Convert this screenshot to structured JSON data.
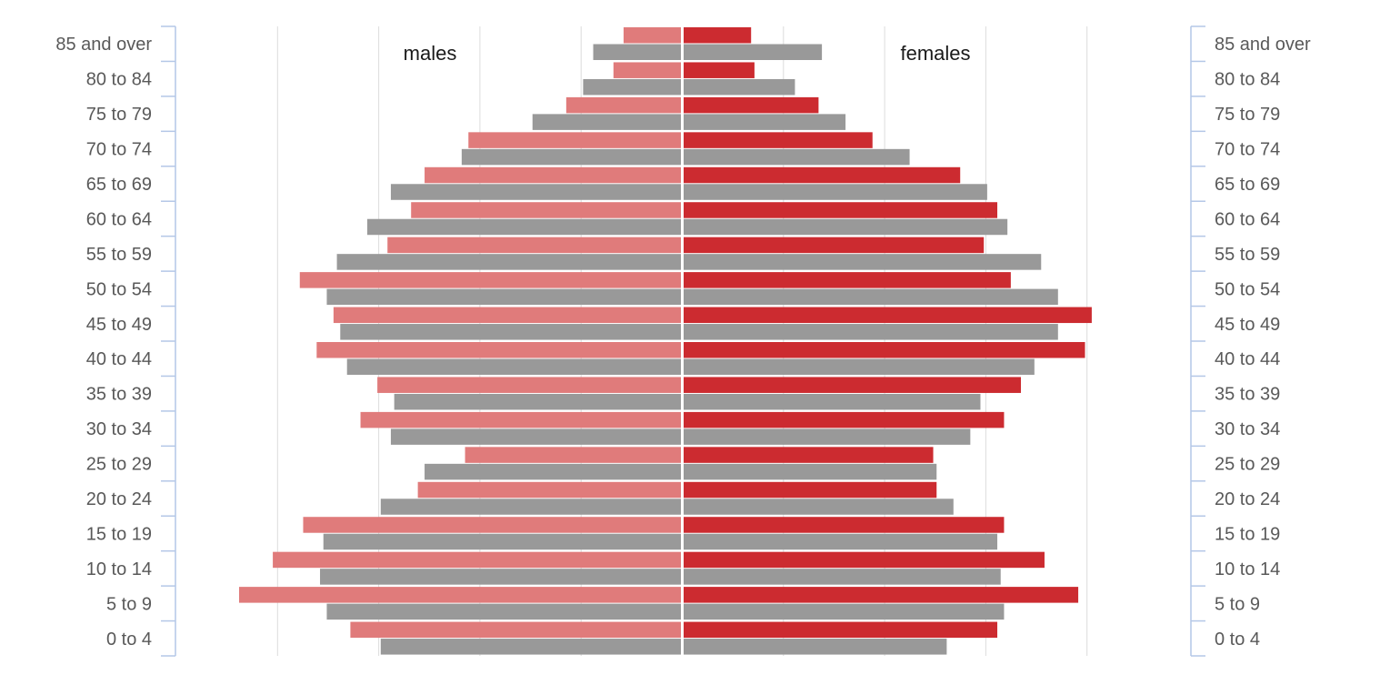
{
  "chart_data": {
    "type": "bar",
    "orientation": "horizontal",
    "layout": "population-pyramid",
    "categories": [
      "0 to 4",
      "5 to 9",
      "10 to 14",
      "15 to 19",
      "20 to 24",
      "25 to 29",
      "30 to 34",
      "35 to 39",
      "40 to 44",
      "45 to 49",
      "50 to 54",
      "55 to 59",
      "60 to 64",
      "65 to 69",
      "70 to 74",
      "75 to 79",
      "80 to 84",
      "85 and over"
    ],
    "side_labels": {
      "left": "males",
      "right": "females"
    },
    "xlim": [
      -12,
      12
    ],
    "grid": true,
    "series": [
      {
        "side": "left",
        "group": "upper",
        "color": "#e07b7b",
        "values": [
          9.8,
          13.1,
          12.1,
          11.2,
          7.8,
          6.4,
          9.5,
          9.0,
          10.8,
          10.3,
          11.3,
          8.7,
          8.0,
          7.6,
          6.3,
          3.4,
          2.0,
          1.7
        ]
      },
      {
        "side": "left",
        "group": "lower",
        "color": "#999999",
        "values": [
          8.9,
          10.5,
          10.7,
          10.6,
          8.9,
          7.6,
          8.6,
          8.5,
          9.9,
          10.1,
          10.5,
          10.2,
          9.3,
          8.6,
          6.5,
          4.4,
          2.9,
          2.6
        ]
      },
      {
        "side": "right",
        "group": "upper",
        "color": "#cc2b30",
        "values": [
          9.3,
          11.7,
          10.7,
          9.5,
          7.5,
          7.4,
          9.5,
          10.0,
          11.9,
          12.1,
          9.7,
          8.9,
          9.3,
          8.2,
          5.6,
          4.0,
          2.1,
          2.0
        ]
      },
      {
        "side": "right",
        "group": "lower",
        "color": "#999999",
        "values": [
          7.8,
          9.5,
          9.4,
          9.3,
          8.0,
          7.5,
          8.5,
          8.8,
          10.4,
          11.1,
          11.1,
          10.6,
          9.6,
          9.0,
          6.7,
          4.8,
          3.3,
          4.1
        ]
      }
    ]
  }
}
